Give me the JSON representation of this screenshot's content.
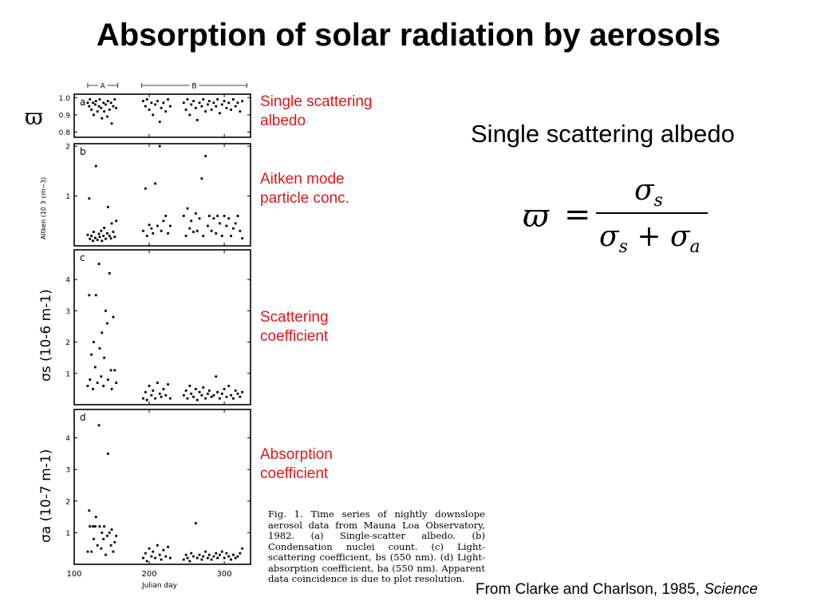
{
  "slide": {
    "title": "Absorption of solar radiation by aerosols",
    "annotations": {
      "a": [
        "Single scattering",
        "albedo"
      ],
      "b": [
        "Aitken mode",
        "particle conc."
      ],
      "c": [
        "Scattering",
        "coefficient"
      ],
      "d": [
        "Absorption",
        "coefficient"
      ]
    },
    "formula_heading": "Single scattering albedo",
    "formula": {
      "lhs": "ϖ",
      "equals": "=",
      "numerator": "σ",
      "numerator_sub": "s",
      "denominator_1": "σ",
      "denominator_1_sub": "s",
      "plus": " + ",
      "denominator_2": "σ",
      "denominator_2_sub": "a"
    },
    "caption": "Fig. 1. Time series of nightly downslope aerosol data from Mauna Loa Observatory, 1982. (a) Single-scatter albedo. (b) Condensation nuclei count. (c) Light-scattering coefficient, bs (550 nm). (d) Light-absorption coefficient, ba (550 nm). Apparent data coincidence is due to plot resolution.",
    "credit_prefix": "From Clarke and Charlson, 1985, ",
    "credit_journal": "Science"
  },
  "chart_data": {
    "type": "scatter",
    "x_label": "Julian day",
    "x_range": [
      100,
      335
    ],
    "x_ticks": [
      100,
      200,
      300
    ],
    "period_markers": [
      {
        "label": "A",
        "start": 118,
        "end": 158
      },
      {
        "label": "B",
        "start": 190,
        "end": 330
      }
    ],
    "panels": [
      {
        "id": "a",
        "letter": "a",
        "y_label": "ϖ",
        "y_range": [
          0.77,
          1.02
        ],
        "y_ticks": [
          "0.8",
          "0.9",
          "1.0"
        ],
        "y_tick_values": [
          0.8,
          0.9,
          1.0
        ],
        "points": [
          [
            118,
            0.97
          ],
          [
            120,
            0.95
          ],
          [
            121,
            0.99
          ],
          [
            123,
            0.93
          ],
          [
            125,
            0.97
          ],
          [
            126,
            0.9
          ],
          [
            128,
            0.96
          ],
          [
            129,
            0.98
          ],
          [
            131,
            0.92
          ],
          [
            133,
            0.95
          ],
          [
            134,
            0.99
          ],
          [
            136,
            0.94
          ],
          [
            137,
            0.88
          ],
          [
            139,
            0.97
          ],
          [
            140,
            0.92
          ],
          [
            142,
            0.96
          ],
          [
            144,
            0.89
          ],
          [
            145,
            0.98
          ],
          [
            147,
            0.93
          ],
          [
            149,
            0.97
          ],
          [
            150,
            0.85
          ],
          [
            152,
            0.95
          ],
          [
            154,
            0.99
          ],
          [
            156,
            0.94
          ],
          [
            192,
            0.98
          ],
          [
            195,
            0.95
          ],
          [
            197,
            0.99
          ],
          [
            200,
            0.93
          ],
          [
            203,
            0.97
          ],
          [
            205,
            0.9
          ],
          [
            208,
            0.96
          ],
          [
            211,
            0.98
          ],
          [
            214,
            0.86
          ],
          [
            216,
            0.94
          ],
          [
            219,
            0.97
          ],
          [
            222,
            0.92
          ],
          [
            225,
            0.99
          ],
          [
            228,
            0.95
          ],
          [
            246,
            0.97
          ],
          [
            249,
            0.93
          ],
          [
            251,
            0.99
          ],
          [
            254,
            0.9
          ],
          [
            256,
            0.96
          ],
          [
            259,
            0.98
          ],
          [
            262,
            0.94
          ],
          [
            264,
            0.87
          ],
          [
            267,
            0.97
          ],
          [
            270,
            0.95
          ],
          [
            272,
            0.99
          ],
          [
            275,
            0.92
          ],
          [
            278,
            0.96
          ],
          [
            280,
            0.98
          ],
          [
            283,
            0.93
          ],
          [
            286,
            0.97
          ],
          [
            289,
            0.95
          ],
          [
            291,
            0.99
          ],
          [
            294,
            0.91
          ],
          [
            297,
            0.96
          ],
          [
            300,
            0.98
          ],
          [
            303,
            0.94
          ],
          [
            306,
            0.97
          ],
          [
            309,
            0.93
          ],
          [
            312,
            0.99
          ],
          [
            315,
            0.95
          ],
          [
            318,
            0.97
          ],
          [
            321,
            0.92
          ],
          [
            324,
            0.98
          ]
        ]
      },
      {
        "id": "b",
        "letter": "b",
        "y_label": "Aitken (10 3 cm−3)",
        "y_range": [
          0,
          2.05
        ],
        "y_ticks": [
          "1",
          "2"
        ],
        "y_tick_values": [
          1,
          2
        ],
        "points": [
          [
            118,
            0.22
          ],
          [
            120,
            0.95
          ],
          [
            121,
            0.14
          ],
          [
            123,
            0.2
          ],
          [
            125,
            0.1
          ],
          [
            126,
            0.28
          ],
          [
            128,
            0.16
          ],
          [
            129,
            1.6
          ],
          [
            131,
            0.12
          ],
          [
            133,
            0.24
          ],
          [
            134,
            0.18
          ],
          [
            136,
            0.3
          ],
          [
            137,
            0.1
          ],
          [
            139,
            0.2
          ],
          [
            140,
            0.36
          ],
          [
            142,
            0.14
          ],
          [
            144,
            0.25
          ],
          [
            145,
            0.78
          ],
          [
            147,
            0.2
          ],
          [
            149,
            0.15
          ],
          [
            150,
            0.45
          ],
          [
            152,
            0.28
          ],
          [
            154,
            0.18
          ],
          [
            156,
            0.5
          ],
          [
            192,
            0.3
          ],
          [
            195,
            1.15
          ],
          [
            197,
            0.2
          ],
          [
            200,
            0.42
          ],
          [
            203,
            0.35
          ],
          [
            205,
            0.25
          ],
          [
            208,
            1.25
          ],
          [
            211,
            0.4
          ],
          [
            214,
            2.0
          ],
          [
            216,
            0.3
          ],
          [
            219,
            0.5
          ],
          [
            222,
            0.6
          ],
          [
            225,
            0.25
          ],
          [
            228,
            0.4
          ],
          [
            246,
            0.6
          ],
          [
            249,
            0.2
          ],
          [
            251,
            0.75
          ],
          [
            254,
            0.35
          ],
          [
            256,
            0.5
          ],
          [
            259,
            0.28
          ],
          [
            262,
            0.65
          ],
          [
            264,
            0.3
          ],
          [
            267,
            0.55
          ],
          [
            270,
            1.35
          ],
          [
            272,
            0.2
          ],
          [
            275,
            1.8
          ],
          [
            278,
            0.4
          ],
          [
            280,
            0.6
          ],
          [
            283,
            0.3
          ],
          [
            286,
            0.55
          ],
          [
            289,
            0.25
          ],
          [
            291,
            0.6
          ],
          [
            294,
            0.45
          ],
          [
            297,
            0.2
          ],
          [
            300,
            0.6
          ],
          [
            303,
            0.4
          ],
          [
            306,
            0.55
          ],
          [
            309,
            0.2
          ],
          [
            312,
            0.35
          ],
          [
            315,
            0.45
          ],
          [
            318,
            0.6
          ],
          [
            321,
            0.3
          ],
          [
            324,
            0.15
          ]
        ]
      },
      {
        "id": "c",
        "letter": "c",
        "y_label": "σs (10-6 m-1)",
        "y_range": [
          0,
          4.95
        ],
        "y_ticks": [
          "1",
          "2",
          "3",
          "4"
        ],
        "y_tick_values": [
          1,
          2,
          3,
          4
        ],
        "points": [
          [
            118,
            0.6
          ],
          [
            120,
            3.5
          ],
          [
            121,
            0.8
          ],
          [
            123,
            1.6
          ],
          [
            125,
            0.5
          ],
          [
            126,
            2.0
          ],
          [
            128,
            1.2
          ],
          [
            129,
            3.5
          ],
          [
            131,
            0.7
          ],
          [
            133,
            4.5
          ],
          [
            134,
            1.8
          ],
          [
            136,
            0.9
          ],
          [
            137,
            2.3
          ],
          [
            139,
            0.6
          ],
          [
            140,
            1.5
          ],
          [
            142,
            3.0
          ],
          [
            144,
            2.6
          ],
          [
            145,
            0.8
          ],
          [
            147,
            4.2
          ],
          [
            149,
            1.1
          ],
          [
            150,
            0.5
          ],
          [
            152,
            2.8
          ],
          [
            154,
            1.1
          ],
          [
            156,
            0.7
          ],
          [
            192,
            0.2
          ],
          [
            195,
            0.4
          ],
          [
            197,
            0.15
          ],
          [
            200,
            0.6
          ],
          [
            203,
            0.3
          ],
          [
            205,
            0.45
          ],
          [
            208,
            0.2
          ],
          [
            211,
            0.7
          ],
          [
            214,
            0.35
          ],
          [
            216,
            0.25
          ],
          [
            219,
            0.5
          ],
          [
            222,
            0.3
          ],
          [
            225,
            0.65
          ],
          [
            228,
            0.2
          ],
          [
            246,
            0.3
          ],
          [
            249,
            0.45
          ],
          [
            251,
            0.2
          ],
          [
            254,
            0.6
          ],
          [
            256,
            0.35
          ],
          [
            259,
            0.25
          ],
          [
            262,
            0.5
          ],
          [
            264,
            0.15
          ],
          [
            267,
            0.4
          ],
          [
            270,
            0.3
          ],
          [
            272,
            0.55
          ],
          [
            275,
            0.2
          ],
          [
            278,
            0.35
          ],
          [
            280,
            0.45
          ],
          [
            283,
            0.25
          ],
          [
            286,
            0.3
          ],
          [
            289,
            0.9
          ],
          [
            291,
            0.4
          ],
          [
            294,
            0.2
          ],
          [
            297,
            0.35
          ],
          [
            300,
            0.5
          ],
          [
            303,
            0.25
          ],
          [
            306,
            0.6
          ],
          [
            309,
            0.3
          ],
          [
            312,
            0.2
          ],
          [
            315,
            0.45
          ],
          [
            318,
            0.35
          ],
          [
            321,
            0.25
          ],
          [
            324,
            0.4
          ]
        ]
      },
      {
        "id": "d",
        "letter": "d",
        "y_label": "σa (10-7 m-1)",
        "y_range": [
          0,
          4.9
        ],
        "y_ticks": [
          "1",
          "2",
          "3",
          "4"
        ],
        "y_tick_values": [
          1,
          2,
          3,
          4
        ],
        "points": [
          [
            118,
            0.4
          ],
          [
            120,
            1.7
          ],
          [
            121,
            1.2
          ],
          [
            123,
            0.4
          ],
          [
            125,
            1.2
          ],
          [
            126,
            0.8
          ],
          [
            128,
            1.2
          ],
          [
            129,
            1.5
          ],
          [
            131,
            0.6
          ],
          [
            133,
            4.4
          ],
          [
            134,
            1.2
          ],
          [
            136,
            0.5
          ],
          [
            137,
            1.0
          ],
          [
            139,
            0.8
          ],
          [
            140,
            1.2
          ],
          [
            142,
            0.3
          ],
          [
            144,
            0.9
          ],
          [
            145,
            3.5
          ],
          [
            147,
            1.0
          ],
          [
            149,
            0.6
          ],
          [
            150,
            1.1
          ],
          [
            152,
            0.4
          ],
          [
            154,
            0.7
          ],
          [
            156,
            0.9
          ],
          [
            192,
            0.2
          ],
          [
            195,
            0.35
          ],
          [
            197,
            0.1
          ],
          [
            200,
            0.5
          ],
          [
            203,
            0.25
          ],
          [
            205,
            0.4
          ],
          [
            208,
            0.2
          ],
          [
            211,
            0.6
          ],
          [
            214,
            0.3
          ],
          [
            216,
            0.15
          ],
          [
            219,
            0.45
          ],
          [
            222,
            0.25
          ],
          [
            225,
            0.55
          ],
          [
            228,
            0.2
          ],
          [
            246,
            0.15
          ],
          [
            249,
            0.3
          ],
          [
            251,
            0.2
          ],
          [
            254,
            0.1
          ],
          [
            256,
            0.35
          ],
          [
            259,
            0.25
          ],
          [
            262,
            1.3
          ],
          [
            264,
            0.2
          ],
          [
            267,
            0.3
          ],
          [
            270,
            0.15
          ],
          [
            272,
            0.25
          ],
          [
            275,
            0.4
          ],
          [
            278,
            0.2
          ],
          [
            280,
            0.3
          ],
          [
            283,
            0.15
          ],
          [
            286,
            0.25
          ],
          [
            289,
            0.35
          ],
          [
            291,
            0.2
          ],
          [
            294,
            0.3
          ],
          [
            297,
            0.4
          ],
          [
            300,
            0.2
          ],
          [
            303,
            0.35
          ],
          [
            306,
            0.25
          ],
          [
            309,
            0.15
          ],
          [
            312,
            0.3
          ],
          [
            315,
            0.2
          ],
          [
            318,
            0.25
          ],
          [
            321,
            0.35
          ],
          [
            324,
            0.5
          ]
        ]
      }
    ]
  }
}
